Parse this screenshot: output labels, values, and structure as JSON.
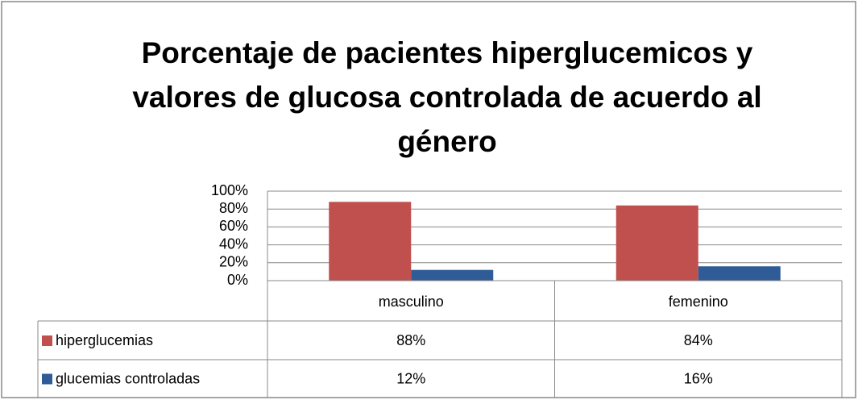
{
  "chart_data": {
    "type": "bar",
    "title": "Porcentaje de pacientes hiperglucemicos y valores de glucosa controlada de acuerdo al género",
    "categories": [
      "masculino",
      "femenino"
    ],
    "series": [
      {
        "name": "hiperglucemias",
        "color": "#c0504d",
        "values": [
          88,
          84
        ],
        "value_labels": [
          "88%",
          "84%"
        ]
      },
      {
        "name": "glucemias controladas",
        "color": "#2f5b96",
        "values": [
          12,
          16
        ],
        "value_labels": [
          "12%",
          "16%"
        ]
      }
    ],
    "ylim": [
      0,
      100
    ],
    "yticks": [
      {
        "value": 0,
        "label": "0%"
      },
      {
        "value": 20,
        "label": "20%"
      },
      {
        "value": 40,
        "label": "40%"
      },
      {
        "value": 60,
        "label": "60%"
      },
      {
        "value": 80,
        "label": "80%"
      },
      {
        "value": 100,
        "label": "100%"
      }
    ],
    "grid": true,
    "data_table": true
  }
}
